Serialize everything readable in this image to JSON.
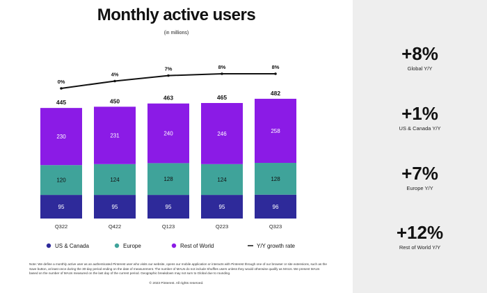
{
  "title": "Monthly active users",
  "subtitle": "(in millions)",
  "chart_data": {
    "type": "bar",
    "stacked": true,
    "title": "Monthly active users",
    "subtitle": "(in millions)",
    "categories": [
      "Q322",
      "Q422",
      "Q123",
      "Q223",
      "Q323"
    ],
    "series": [
      {
        "name": "US & Canada",
        "color": "#2e2a9a",
        "values": [
          95,
          95,
          95,
          95,
          96
        ]
      },
      {
        "name": "Europe",
        "color": "#3fa39a",
        "values": [
          120,
          124,
          128,
          124,
          128
        ]
      },
      {
        "name": "Rest of World",
        "color": "#8b1be6",
        "values": [
          230,
          231,
          240,
          246,
          258
        ]
      }
    ],
    "totals": [
      445,
      450,
      463,
      465,
      482
    ],
    "line": {
      "name": "Y/Y growth rate",
      "color": "#111111",
      "values": [
        0,
        4,
        7,
        8,
        8
      ],
      "labels": [
        "0%",
        "4%",
        "7%",
        "8%",
        "8%"
      ],
      "ylim": [
        0,
        8
      ]
    },
    "ylim": [
      0,
      500
    ],
    "legend_position": "bottom"
  },
  "legend": [
    {
      "label": "US & Canada",
      "color": "#2e2a9a",
      "type": "dot"
    },
    {
      "label": "Europe",
      "color": "#3fa39a",
      "type": "dot"
    },
    {
      "label": "Rest of World",
      "color": "#8b1be6",
      "type": "dot"
    },
    {
      "label": "Y/Y growth rate",
      "color": "#111111",
      "type": "line"
    }
  ],
  "stats": [
    {
      "value": "+8%",
      "label": "Global Y/Y"
    },
    {
      "value": "+1%",
      "label": "US & Canada Y/Y"
    },
    {
      "value": "+7%",
      "label": "Europe Y/Y"
    },
    {
      "value": "+12%",
      "label": "Rest of World Y/Y"
    }
  ],
  "note": "Note: We define a monthly active user as an authenticated Pinterest user who visits our website, opens our mobile application or interacts with Pinterest through one of our browser or site extensions, such as the Save button, at least once during the 30-day period ending on the date of measurement. The number of MAUs do not include Shuffles users unless they would otherwise qualify as MAUs. We present MAUs based on the number of MAUs measured on the last day of the current period. Geographic breakdown may not sum to Global due to rounding.",
  "copyright": "© 2023 Pinterest. All rights reserved."
}
